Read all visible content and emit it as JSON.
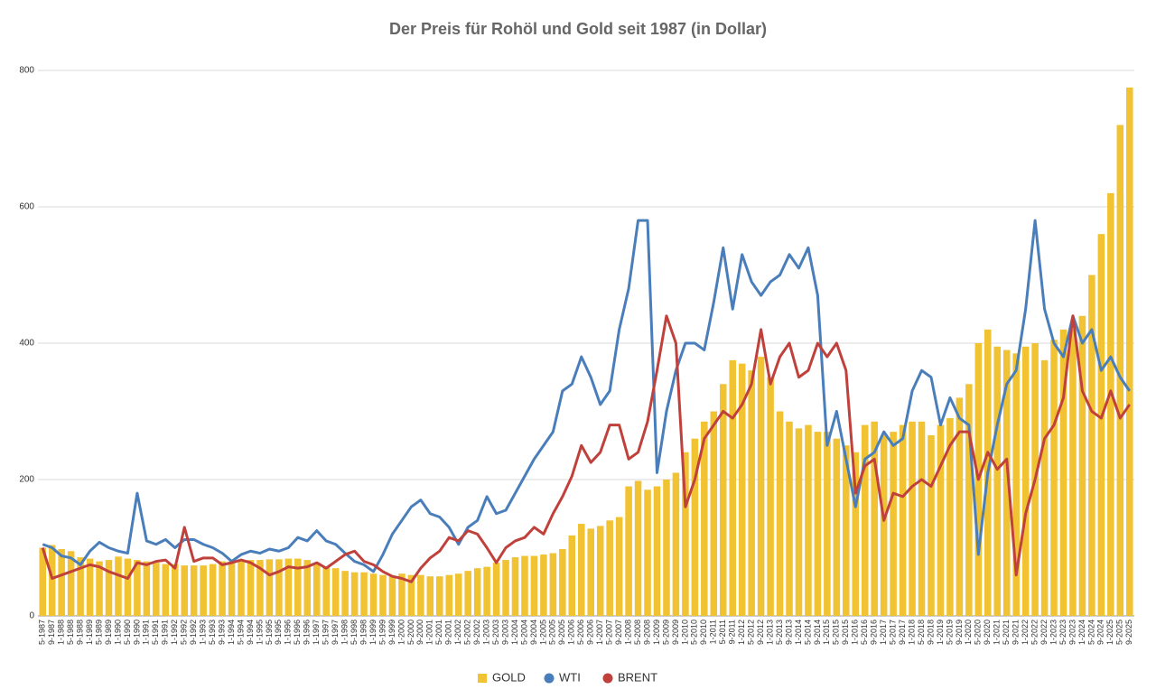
{
  "chart_data": {
    "type": "combo",
    "title": "Der Preis für Rohöl und Gold seit 1987 (in Dollar)",
    "categories": [
      "5-1987",
      "9-1987",
      "1-1988",
      "5-1988",
      "9-1988",
      "1-1989",
      "5-1989",
      "9-1989",
      "1-1990",
      "5-1990",
      "9-1990",
      "1-1991",
      "5-1991",
      "9-1991",
      "1-1992",
      "5-1992",
      "9-1992",
      "1-1993",
      "5-1993",
      "9-1993",
      "1-1994",
      "5-1994",
      "9-1994",
      "1-1995",
      "5-1995",
      "9-1995",
      "1-1996",
      "5-1996",
      "9-1996",
      "1-1997",
      "5-1997",
      "9-1997",
      "1-1998",
      "5-1998",
      "9-1998",
      "1-1999",
      "5-1999",
      "9-1999",
      "1-2000",
      "5-2000",
      "9-2000",
      "1-2001",
      "5-2001",
      "9-2001",
      "1-2002",
      "5-2002",
      "9-2002",
      "1-2003",
      "5-2003",
      "9-2003",
      "1-2004",
      "5-2004",
      "9-2004",
      "1-2005",
      "5-2005",
      "9-2005",
      "1-2006",
      "5-2006",
      "9-2006",
      "1-2007",
      "5-2007",
      "9-2007",
      "1-2008",
      "5-2008",
      "9-2008",
      "1-2009",
      "5-2009",
      "9-2009",
      "1-2010",
      "5-2010",
      "9-2010",
      "1-2011",
      "5-2011",
      "9-2011",
      "1-2012",
      "5-2012",
      "9-2012",
      "1-2013",
      "5-2013",
      "9-2013",
      "1-2014",
      "5-2014",
      "9-2014",
      "1-2015",
      "5-2015",
      "9-2015",
      "1-2016",
      "5-2016",
      "9-2016",
      "1-2017",
      "5-2017",
      "9-2017",
      "1-2018",
      "5-2018",
      "9-2018",
      "1-2019",
      "5-2019",
      "9-2019",
      "1-2020",
      "5-2020",
      "9-2020",
      "1-2021",
      "5-2021",
      "9-2021",
      "1-2022",
      "5-2022",
      "9-2022",
      "1-2023",
      "5-2023",
      "9-2023",
      "1-2024",
      "5-2024",
      "9-2024",
      "1-2025",
      "5-2025",
      "9-2025"
    ],
    "series": [
      {
        "name": "GOLD",
        "type": "bar",
        "color": "#f1c232",
        "values": [
          100,
          104,
          98,
          95,
          86,
          84,
          80,
          82,
          87,
          84,
          82,
          80,
          78,
          76,
          76,
          74,
          74,
          74,
          76,
          80,
          80,
          82,
          82,
          82,
          83,
          83,
          84,
          84,
          82,
          78,
          72,
          70,
          66,
          64,
          64,
          62,
          60,
          58,
          62,
          60,
          60,
          58,
          58,
          60,
          62,
          66,
          70,
          72,
          78,
          82,
          86,
          88,
          88,
          90,
          92,
          98,
          118,
          135,
          128,
          132,
          140,
          145,
          190,
          198,
          185,
          190,
          200,
          210,
          240,
          260,
          285,
          300,
          340,
          375,
          370,
          360,
          380,
          350,
          300,
          285,
          275,
          280,
          270,
          270,
          260,
          250,
          240,
          280,
          285,
          265,
          270,
          280,
          285,
          285,
          265,
          280,
          290,
          320,
          340,
          400,
          420,
          395,
          390,
          385,
          395,
          400,
          375,
          405,
          420,
          420,
          440,
          500,
          560,
          620,
          720,
          775
        ]
      },
      {
        "name": "WTI",
        "type": "line",
        "color": "#4a7ebb",
        "values": [
          105,
          100,
          88,
          85,
          75,
          95,
          108,
          100,
          95,
          92,
          180,
          110,
          105,
          112,
          100,
          112,
          112,
          105,
          100,
          92,
          80,
          90,
          95,
          92,
          98,
          95,
          100,
          115,
          110,
          125,
          110,
          105,
          92,
          80,
          75,
          65,
          90,
          120,
          140,
          160,
          170,
          150,
          145,
          130,
          105,
          130,
          140,
          175,
          150,
          155,
          180,
          205,
          230,
          250,
          270,
          330,
          340,
          380,
          350,
          310,
          330,
          420,
          480,
          580,
          580,
          210,
          300,
          360,
          400,
          400,
          390,
          460,
          540,
          450,
          530,
          490,
          470,
          490,
          500,
          530,
          510,
          540,
          470,
          250,
          300,
          230,
          160,
          230,
          240,
          270,
          250,
          260,
          330,
          360,
          350,
          280,
          320,
          290,
          280,
          90,
          210,
          280,
          340,
          360,
          450,
          580,
          450,
          400,
          380,
          440,
          400,
          420,
          360,
          380,
          350,
          330
        ]
      },
      {
        "name": "BRENT",
        "type": "line",
        "color": "#c0413b",
        "values": [
          100,
          55,
          60,
          65,
          70,
          75,
          72,
          65,
          60,
          55,
          78,
          75,
          80,
          82,
          70,
          130,
          80,
          85,
          85,
          75,
          78,
          82,
          78,
          70,
          60,
          65,
          72,
          70,
          72,
          78,
          70,
          80,
          90,
          95,
          80,
          75,
          65,
          58,
          55,
          50,
          70,
          85,
          95,
          115,
          110,
          125,
          120,
          100,
          78,
          100,
          110,
          115,
          130,
          120,
          150,
          175,
          205,
          250,
          225,
          240,
          280,
          280,
          230,
          240,
          285,
          360,
          440,
          400,
          160,
          200,
          260,
          280,
          300,
          290,
          310,
          340,
          420,
          340,
          380,
          400,
          350,
          360,
          400,
          380,
          400,
          360,
          180,
          220,
          230,
          140,
          180,
          175,
          190,
          200,
          190,
          220,
          250,
          270,
          270,
          200,
          240,
          215,
          230,
          60,
          150,
          200,
          260,
          280,
          320,
          440,
          330,
          300,
          290,
          330,
          290,
          310
        ]
      }
    ],
    "ylim": [
      0,
      800
    ],
    "yticks": [
      0,
      200,
      400,
      600,
      800
    ],
    "grid": true,
    "legend": "bottom"
  }
}
